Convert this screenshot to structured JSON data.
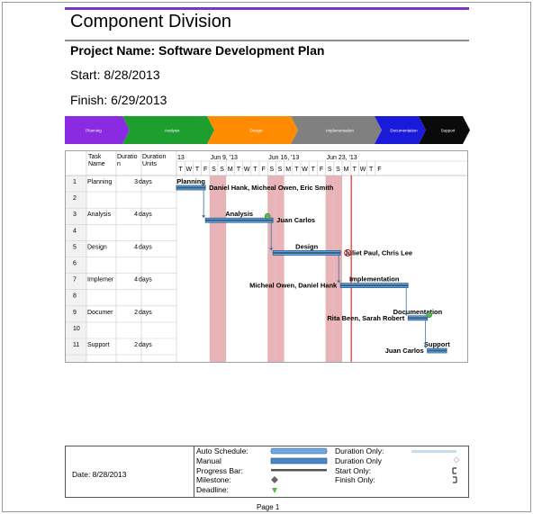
{
  "header": {
    "title": "Component Division",
    "project": "Project Name: Software Development Plan",
    "start": "Start: 8/28/2013",
    "finish": "Finish: 6/29/2013"
  },
  "phases": [
    {
      "label": "Planning",
      "color": "#8a2be2",
      "text_color": "#ffffff"
    },
    {
      "label": "Analysis",
      "color": "#1e9e2e",
      "text_color": "#ffffff"
    },
    {
      "label": "Design",
      "color": "#ff8c00",
      "text_color": "#ffffff"
    },
    {
      "label": "Implementation",
      "color": "#808080",
      "text_color": "#ffffff"
    },
    {
      "label": "Documentation",
      "color": "#1a1adb",
      "text_color": "#ffffff"
    },
    {
      "label": "Support",
      "color": "#0a0a0a",
      "text_color": "#ffffff"
    }
  ],
  "grid": {
    "columns": [
      "",
      "Task Name",
      "Duration",
      "Duration Units"
    ],
    "week_labels": [
      "13",
      "Jun 9, '13",
      "Jun 16, '13",
      "Jun 23, '13"
    ],
    "day_letters": [
      "T",
      "W",
      "T",
      "F",
      "S",
      "S",
      "M",
      "T",
      "W",
      "T",
      "F",
      "S",
      "S",
      "M",
      "T",
      "W",
      "T",
      "F",
      "S",
      "S",
      "M",
      "T",
      "W",
      "T",
      "F"
    ],
    "rows": [
      {
        "id": "1",
        "name": "Planning",
        "duration": "3",
        "units": "days"
      },
      {
        "id": "2",
        "name": "",
        "duration": "",
        "units": ""
      },
      {
        "id": "3",
        "name": "Analysis",
        "duration": "4",
        "units": "days"
      },
      {
        "id": "4",
        "name": "",
        "duration": "",
        "units": ""
      },
      {
        "id": "5",
        "name": "Design",
        "duration": "4",
        "units": "days"
      },
      {
        "id": "6",
        "name": "",
        "duration": "",
        "units": ""
      },
      {
        "id": "7",
        "name": "Implemer",
        "duration": "4",
        "units": "days"
      },
      {
        "id": "8",
        "name": "",
        "duration": "",
        "units": ""
      },
      {
        "id": "9",
        "name": "Documer",
        "duration": "2",
        "units": "days"
      },
      {
        "id": "10",
        "name": "",
        "duration": "",
        "units": ""
      },
      {
        "id": "11",
        "name": "Support",
        "duration": "2",
        "units": "days"
      }
    ]
  },
  "tasks": [
    {
      "name": "Planning",
      "row": 0,
      "start": 0,
      "days": 1.5,
      "resources": "Daniel Hank, Micheal Owen, Eric Smith",
      "label_pos": "right"
    },
    {
      "name": "Analysis",
      "row": 2,
      "start": 1.5,
      "days": 3.5,
      "resources": "Juan Carlos",
      "label_pos": "right"
    },
    {
      "name": "Design",
      "row": 4,
      "start": 5.0,
      "days": 3.5,
      "resources": "Juliet Paul, Chris Lee",
      "label_pos": "right"
    },
    {
      "name": "Implementation",
      "row": 6,
      "start": 8.5,
      "days": 3.5,
      "resources": "Micheal Owen, Daniel Hank",
      "label_pos": "left"
    },
    {
      "name": "Documentation",
      "row": 8,
      "start": 12.0,
      "days": 1.0,
      "resources": "Rita Been, Sarah Robert",
      "label_pos": "left"
    },
    {
      "name": "Support",
      "row": 10,
      "start": 13.0,
      "days": 1.0,
      "resources": "Juan Carlos",
      "label_pos": "left"
    }
  ],
  "status_date_label": "",
  "legend": {
    "date": "Date: 8/28/2013",
    "items_left": [
      "Auto Schedule:",
      "Manual",
      "Progress Bar:",
      "Milestone:",
      "Deadline:"
    ],
    "items_right": [
      "Duration Only:",
      "Duration Only",
      "Start Only:",
      "Finish Only:"
    ]
  },
  "footer": {
    "page": "Page 1"
  },
  "colors": {
    "weekend": "#e8b4b8",
    "bar": "#6fa8dc",
    "bar_dark": "#2f5f8a",
    "status_line": "#e00000",
    "milestone_green": "#5fb84f"
  }
}
